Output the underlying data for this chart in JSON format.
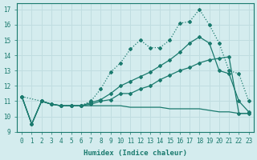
{
  "xlabel": "Humidex (Indice chaleur)",
  "background_color": "#d4ecee",
  "grid_color": "#c0dde0",
  "line_color": "#1a7a6e",
  "xlim": [
    -0.5,
    23.5
  ],
  "ylim": [
    9,
    17.4
  ],
  "xticks": [
    0,
    1,
    2,
    3,
    4,
    5,
    6,
    7,
    8,
    9,
    10,
    11,
    12,
    13,
    14,
    15,
    16,
    17,
    18,
    19,
    20,
    21,
    22,
    23
  ],
  "yticks": [
    9,
    10,
    11,
    12,
    13,
    14,
    15,
    16,
    17
  ],
  "s1_x": [
    0,
    1,
    2,
    3,
    4,
    5,
    6,
    7,
    8,
    9,
    10,
    11,
    12,
    13,
    14,
    15,
    16,
    17,
    18,
    19,
    20,
    21,
    22,
    23
  ],
  "s1_y": [
    11.3,
    9.5,
    11.0,
    10.8,
    10.7,
    10.7,
    10.7,
    10.8,
    11.0,
    11.1,
    11.5,
    11.5,
    11.8,
    12.0,
    12.4,
    12.7,
    13.0,
    13.2,
    13.5,
    13.7,
    13.8,
    13.9,
    10.2,
    10.2
  ],
  "s2_x": [
    0,
    2,
    3,
    4,
    5,
    6,
    7,
    8,
    9,
    10,
    11,
    12,
    13,
    14,
    15,
    16,
    17,
    18,
    19,
    20,
    21,
    22,
    23
  ],
  "s2_y": [
    11.3,
    11.0,
    10.8,
    10.7,
    10.7,
    10.7,
    11.0,
    11.8,
    12.9,
    13.5,
    14.4,
    15.0,
    14.5,
    14.5,
    15.0,
    16.1,
    16.2,
    17.0,
    16.0,
    14.8,
    13.0,
    12.8,
    11.0
  ],
  "s3_x": [
    0,
    1,
    2,
    3,
    4,
    5,
    6,
    7,
    8,
    9,
    10,
    11,
    12,
    13,
    14,
    15,
    16,
    17,
    18,
    19,
    20,
    21,
    22,
    23
  ],
  "s3_y": [
    11.3,
    9.5,
    11.0,
    10.8,
    10.7,
    10.7,
    10.7,
    10.9,
    11.1,
    11.5,
    12.0,
    12.3,
    12.6,
    12.9,
    13.3,
    13.7,
    14.2,
    14.8,
    15.2,
    14.8,
    13.0,
    12.8,
    11.0,
    10.3
  ],
  "s4_x": [
    0,
    1,
    2,
    3,
    4,
    5,
    6,
    7,
    8,
    9,
    10,
    11,
    12,
    13,
    14,
    15,
    16,
    17,
    18,
    19,
    20,
    21,
    22,
    23
  ],
  "s4_y": [
    11.3,
    9.5,
    11.0,
    10.8,
    10.7,
    10.7,
    10.7,
    10.7,
    10.7,
    10.7,
    10.7,
    10.6,
    10.6,
    10.6,
    10.6,
    10.5,
    10.5,
    10.5,
    10.5,
    10.4,
    10.3,
    10.3,
    10.2,
    10.2
  ],
  "marker": "D",
  "ms": 2.0,
  "lw": 0.9
}
